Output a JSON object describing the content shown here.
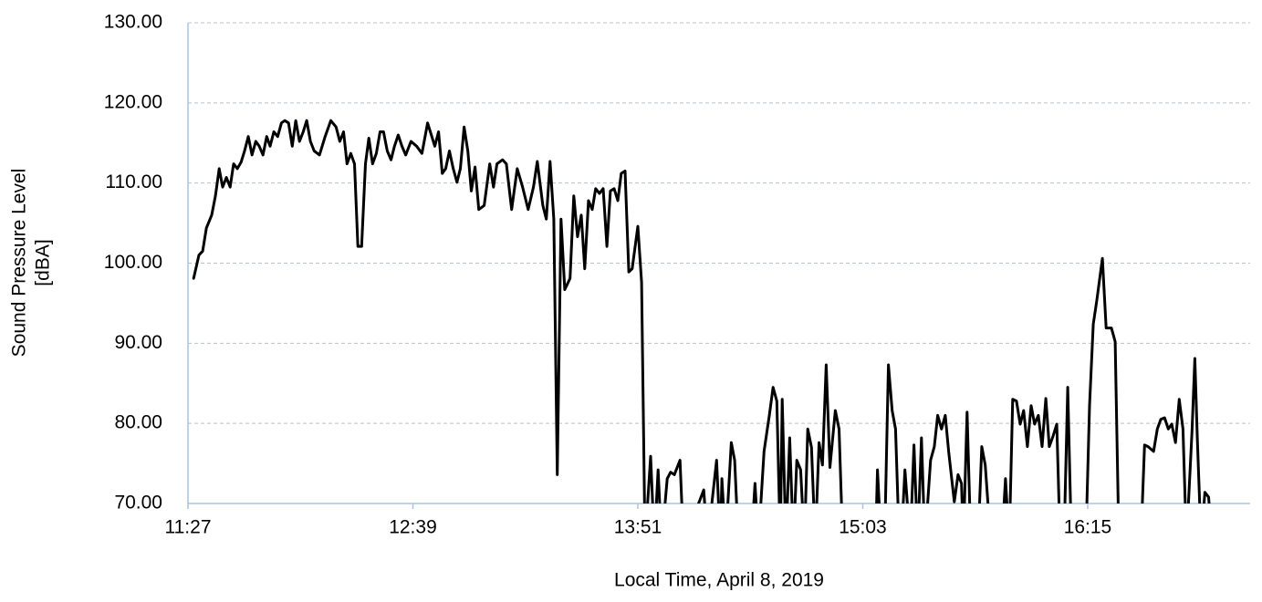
{
  "chart_data": {
    "type": "line",
    "xlabel": "Local Time, April 8, 2019",
    "ylabel": [
      "Sound Pressure Level",
      "[dBA]"
    ],
    "xlim": [
      687,
      1027
    ],
    "ylim": [
      70,
      130
    ],
    "xticks": [
      {
        "value": 687,
        "label": "11:27"
      },
      {
        "value": 759,
        "label": "12:39"
      },
      {
        "value": 831,
        "label": "13:51"
      },
      {
        "value": 903,
        "label": "15:03"
      },
      {
        "value": 975,
        "label": "16:15"
      }
    ],
    "yticks": [
      {
        "value": 70,
        "label": "70.00"
      },
      {
        "value": 80,
        "label": "80.00"
      },
      {
        "value": 90,
        "label": "90.00"
      },
      {
        "value": 100,
        "label": "100.00"
      },
      {
        "value": 110,
        "label": "110.00"
      },
      {
        "value": 120,
        "label": "120.00"
      },
      {
        "value": 130,
        "label": "130.00"
      }
    ],
    "grid": true,
    "x": [
      688.8,
      690.5,
      691.7,
      692.9,
      694.6,
      695.8,
      697.0,
      698.1,
      699.3,
      700.5,
      701.6,
      702.8,
      704.0,
      705.1,
      706.3,
      707.5,
      708.7,
      709.8,
      711.0,
      712.2,
      713.3,
      714.5,
      715.7,
      716.9,
      718.0,
      719.2,
      720.4,
      721.5,
      722.7,
      723.9,
      725.0,
      726.2,
      727.4,
      729.1,
      730.9,
      732.7,
      734.4,
      735.6,
      736.8,
      737.9,
      739.1,
      740.3,
      741.4,
      742.6,
      743.8,
      744.9,
      746.1,
      747.3,
      748.5,
      749.6,
      750.8,
      752.0,
      753.1,
      754.3,
      755.5,
      756.7,
      758.4,
      760.2,
      761.9,
      763.7,
      764.9,
      766.0,
      767.2,
      768.4,
      769.5,
      770.7,
      771.9,
      773.1,
      774.2,
      775.4,
      776.6,
      777.7,
      778.9,
      780.1,
      781.8,
      783.6,
      784.8,
      785.9,
      787.7,
      788.9,
      790.6,
      792.4,
      794.1,
      795.9,
      797.6,
      798.8,
      800.6,
      801.7,
      802.9,
      804.1,
      805.2,
      806.4,
      807.6,
      809.3,
      810.5,
      811.7,
      812.9,
      814.0,
      815.2,
      816.4,
      817.5,
      818.7,
      819.9,
      821.1,
      822.2,
      823.4,
      824.6,
      825.7,
      826.9,
      828.1,
      829.2,
      831.0,
      832.2,
      833.3,
      835.1,
      836.3,
      837.5,
      838.6,
      840.4,
      841.5,
      842.7,
      844.5,
      845.6,
      852.1,
      853.3,
      856.2,
      857.4,
      857.9,
      859.1,
      860.9,
      862.0,
      863.2,
      867.3,
      868.5,
      869.6,
      871.4,
      873.1,
      874.3,
      875.5,
      876.6,
      877.2,
      878.4,
      879.6,
      880.8,
      881.9,
      883.1,
      884.3,
      885.4,
      886.6,
      887.8,
      889.0,
      890.1,
      891.3,
      892.5,
      894.2,
      895.4,
      896.6,
      907.1,
      907.7,
      908.9,
      910.0,
      911.2,
      912.4,
      913.5,
      914.7,
      915.3,
      916.5,
      918.2,
      919.4,
      920.6,
      921.8,
      922.9,
      924.7,
      925.9,
      927.0,
      928.2,
      929.4,
      930.5,
      932.3,
      933.5,
      934.6,
      935.2,
      936.4,
      937.6,
      939.9,
      941.1,
      942.2,
      944.0,
      947.5,
      948.7,
      949.9,
      951.0,
      952.2,
      953.4,
      954.5,
      955.7,
      956.9,
      958.0,
      959.2,
      960.4,
      961.6,
      962.7,
      963.9,
      965.1,
      966.2,
      967.4,
      968.6,
      969.8,
      974.4,
      975.6,
      976.8,
      977.9,
      979.7,
      980.9,
      982.6,
      983.8,
      985.0,
      992.0,
      993.2,
      994.3,
      996.1,
      997.3,
      998.4,
      999.6,
      1000.8,
      1001.9,
      1003.1,
      1004.3,
      1005.5,
      1006.6,
      1008.4,
      1009.3,
      1010.1,
      1011.3,
      1012.5,
      1013.7,
      1014.8
    ],
    "series": [
      {
        "color": "#000000",
        "values": [
          98.1,
          101,
          101.5,
          104.4,
          106,
          108.4,
          111.8,
          109.5,
          110.7,
          109.5,
          112.4,
          111.8,
          112.6,
          114,
          115.8,
          113.5,
          115.2,
          114.6,
          113.5,
          115.8,
          114.6,
          116.4,
          115.8,
          117.5,
          117.8,
          117.5,
          114.6,
          117.8,
          115.2,
          116.4,
          117.8,
          115.2,
          114,
          113.5,
          115.8,
          117.8,
          117,
          115.2,
          116.4,
          112.4,
          113.7,
          112.4,
          102.1,
          102.1,
          112.4,
          115.6,
          112.4,
          113.7,
          116.4,
          116.4,
          114,
          112.9,
          114.6,
          116,
          114.6,
          113.5,
          115.2,
          114.6,
          113.7,
          117.5,
          116,
          114.6,
          116.4,
          111.2,
          111.8,
          114,
          111.8,
          110.1,
          111.8,
          117,
          114,
          109,
          112,
          106.7,
          107.2,
          112.4,
          109.5,
          112.4,
          112.9,
          112.4,
          106.7,
          111.8,
          109.5,
          106.7,
          109.5,
          112.7,
          107.2,
          105.5,
          112.7,
          105.5,
          73.6,
          105.5,
          96.7,
          98.1,
          108.4,
          103.3,
          106,
          99.3,
          107.8,
          106.7,
          109.3,
          108.7,
          109.3,
          102.1,
          109,
          109.3,
          107.8,
          111.2,
          111.5,
          98.9,
          99.3,
          104.6,
          97.6,
          65,
          75.9,
          65,
          74.2,
          65,
          73.1,
          73.9,
          73.6,
          75.4,
          65,
          71.7,
          65,
          75.4,
          65,
          73.1,
          65,
          77.6,
          75.4,
          65,
          65,
          72.5,
          65,
          76.5,
          81,
          84.5,
          82.8,
          65,
          83,
          65,
          78.2,
          65,
          75.4,
          74.2,
          65,
          79.3,
          77,
          65,
          77.6,
          74.8,
          87.3,
          74.5,
          81.6,
          79.3,
          65,
          65,
          74.2,
          65,
          65,
          87.3,
          81.6,
          79.3,
          65,
          65,
          74.2,
          65,
          77.3,
          65,
          78.2,
          65,
          75.4,
          77.1,
          81,
          79.3,
          81,
          76.5,
          70.2,
          73.6,
          72.5,
          65,
          81.4,
          65,
          65,
          77.1,
          74.8,
          65,
          65,
          73.1,
          65,
          83,
          82.8,
          79.9,
          81.6,
          77.1,
          82.2,
          79.9,
          81,
          77.1,
          83.1,
          77.1,
          78.4,
          79.9,
          65,
          65,
          84.5,
          65,
          65,
          82.2,
          92.4,
          95.3,
          100.6,
          91.9,
          91.9,
          90.2,
          65,
          65,
          77.3,
          77.1,
          76.5,
          79.3,
          80.5,
          80.7,
          79.3,
          79.9,
          77.6,
          83,
          79.3,
          65,
          79,
          88.1,
          78.2,
          65,
          71.4,
          70.8,
          65
        ]
      }
    ]
  }
}
